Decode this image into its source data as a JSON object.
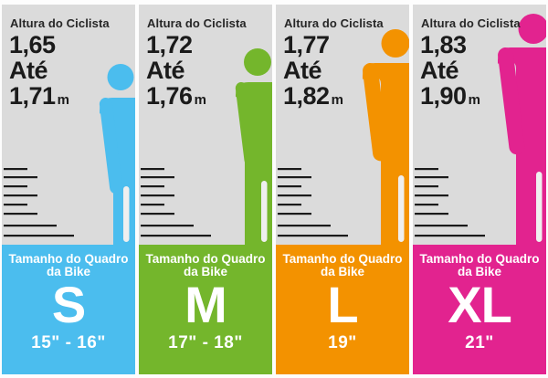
{
  "title_label": "Altura do Ciclista",
  "until_label": "Até",
  "unit_label": "m",
  "frame_label_line1": "Tamanho do Quadro",
  "frame_label_line2": "da Bike",
  "colors": {
    "panel_gray": "#dbdbdb",
    "ruler_mark": "#1a1a1a",
    "leg_slit": "#efefef",
    "dark_text": "#1b1b1b",
    "light_text": "#ffffff",
    "background": "#fdfdfd"
  },
  "cards": [
    {
      "size": "S",
      "height_from": "1,65",
      "height_to": "1,71",
      "inches": "15\" - 16\"",
      "color": "#4bbdee"
    },
    {
      "size": "M",
      "height_from": "1,72",
      "height_to": "1,76",
      "inches": "17\" - 18\"",
      "color": "#74b62c"
    },
    {
      "size": "L",
      "height_from": "1,77",
      "height_to": "1,82",
      "inches": "19\"",
      "color": "#f39200"
    },
    {
      "size": "XL",
      "height_from": "1,83",
      "height_to": "1,90",
      "inches": "21\"",
      "color": "#e2238f"
    }
  ],
  "chart_data": {
    "type": "table",
    "columns": [
      "Altura do Ciclista",
      "Tamanho do Quadro da Bike"
    ],
    "rows": [
      [
        "1,65 Até 1,71 m",
        "S (15\" - 16\")"
      ],
      [
        "1,72 Até 1,76 m",
        "M (17\" - 18\")"
      ],
      [
        "1,77 Até 1,82 m",
        "L (19\")"
      ],
      [
        "1,83 Até 1,90 m",
        "XL (21\")"
      ]
    ]
  }
}
